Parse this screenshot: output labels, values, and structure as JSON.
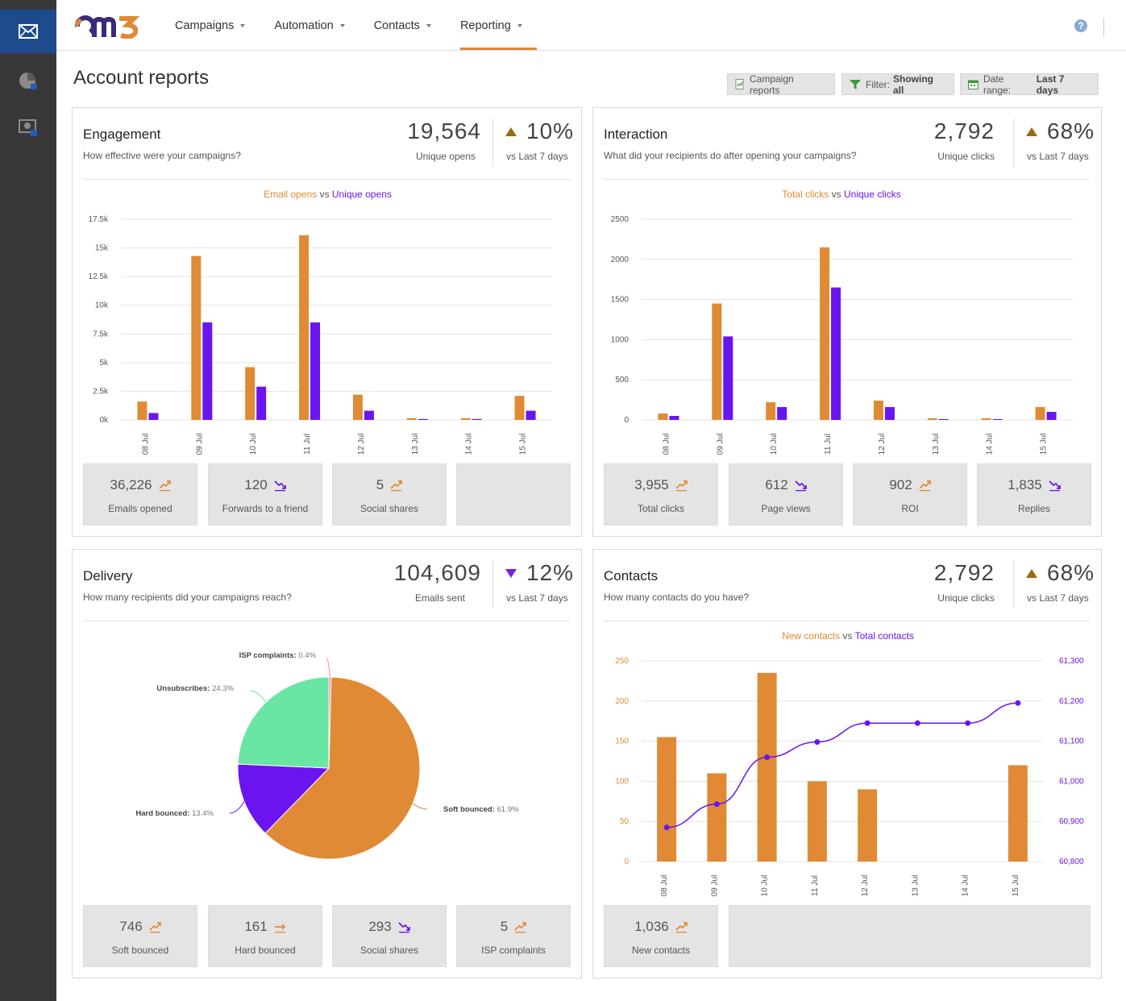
{
  "nav": {
    "logo_text": "om3",
    "items": [
      {
        "label": "Campaigns",
        "active": false
      },
      {
        "label": "Automation",
        "active": false
      },
      {
        "label": "Contacts",
        "active": false
      },
      {
        "label": "Reporting",
        "active": true
      }
    ],
    "help_symbol": "?"
  },
  "sidebar": {
    "icons": [
      "envelope-icon",
      "pie-chart-icon",
      "report-monitor-icon"
    ]
  },
  "page": {
    "title": "Account reports",
    "buttons": {
      "campaign_reports": "Campaign reports",
      "filter_label": "Filter:",
      "filter_value": "Showing all",
      "date_label": "Date range:",
      "date_value": "Last 7 days"
    }
  },
  "colors": {
    "orange": "#e08a35",
    "purple": "#6a14f0",
    "green": "#69e6a3",
    "pink": "#ff7eb3"
  },
  "engagement": {
    "title": "Engagement",
    "subtitle": "How effective were your campaigns?",
    "big_value": "19,564",
    "big_label": "Unique opens",
    "pct_value": "10%",
    "pct_direction": "up",
    "pct_label": "vs Last 7 days",
    "legend": {
      "a": "Email opens",
      "vs": "vs",
      "b": "Unique opens"
    },
    "stats": [
      {
        "value": "36,226",
        "label": "Emails opened",
        "trend": "up"
      },
      {
        "value": "120",
        "label": "Forwards to a friend",
        "trend": "down"
      },
      {
        "value": "5",
        "label": "Social shares",
        "trend": "up"
      }
    ]
  },
  "interaction": {
    "title": "Interaction",
    "subtitle": "What did your recipients do after opening your campaigns?",
    "big_value": "2,792",
    "big_label": "Unique clicks",
    "pct_value": "68%",
    "pct_direction": "up",
    "pct_label": "vs Last 7 days",
    "legend": {
      "a": "Total clicks",
      "vs": "vs",
      "b": "Unique clicks"
    },
    "stats": [
      {
        "value": "3,955",
        "label": "Total clicks",
        "trend": "up"
      },
      {
        "value": "612",
        "label": "Page views",
        "trend": "down"
      },
      {
        "value": "902",
        "label": "ROI",
        "trend": "up"
      },
      {
        "value": "1,835",
        "label": "Replies",
        "trend": "down"
      }
    ]
  },
  "delivery": {
    "title": "Delivery",
    "subtitle": "How many recipients did your campaigns reach?",
    "big_value": "104,609",
    "big_label": "Emails sent",
    "pct_value": "12%",
    "pct_direction": "down",
    "pct_label": "vs Last 7 days",
    "stats": [
      {
        "value": "746",
        "label": "Soft bounced",
        "trend": "up"
      },
      {
        "value": "161",
        "label": "Hard bounced",
        "trend": "flat"
      },
      {
        "value": "293",
        "label": "Social shares",
        "trend": "down"
      },
      {
        "value": "5",
        "label": "ISP complaints",
        "trend": "up"
      }
    ]
  },
  "contacts": {
    "title": "Contacts",
    "subtitle": "How many contacts do you have?",
    "big_value": "2,792",
    "big_label": "Unique clicks",
    "pct_value": "68%",
    "pct_direction": "up",
    "pct_label": "vs Last 7 days",
    "legend": {
      "a": "New contacts",
      "vs": "vs",
      "b": "Total contacts"
    },
    "stats": [
      {
        "value": "1,036",
        "label": "New contacts",
        "trend": "up"
      }
    ]
  },
  "chart_data": [
    {
      "type": "bar",
      "categories": [
        "08 Jul",
        "09 Jul",
        "10 Jul",
        "11 Jul",
        "12 Jul",
        "13 Jul",
        "14 Jul",
        "15 Jul"
      ],
      "series": [
        {
          "name": "Email opens",
          "values": [
            1600,
            14300,
            4600,
            16100,
            2200,
            150,
            150,
            2100
          ]
        },
        {
          "name": "Unique opens",
          "values": [
            600,
            8500,
            2900,
            8500,
            800,
            80,
            80,
            800
          ]
        }
      ],
      "ylim": [
        0,
        17500
      ],
      "yticks": [
        "0k",
        "2.5k",
        "5k",
        "7.5k",
        "10k",
        "12.5k",
        "15k",
        "17.5k"
      ],
      "grid": true
    },
    {
      "type": "bar",
      "categories": [
        "08 Jul",
        "09 Jul",
        "10 Jul",
        "11 Jul",
        "12 Jul",
        "13 Jul",
        "14 Jul",
        "15 Jul"
      ],
      "series": [
        {
          "name": "Total clicks",
          "values": [
            80,
            1450,
            220,
            2150,
            240,
            20,
            20,
            160
          ]
        },
        {
          "name": "Unique clicks",
          "values": [
            50,
            1040,
            160,
            1650,
            160,
            10,
            10,
            100
          ]
        }
      ],
      "ylim": [
        0,
        2500
      ],
      "yticks": [
        "0",
        "500",
        "1000",
        "1500",
        "2000",
        "2500"
      ],
      "grid": true
    },
    {
      "type": "pie",
      "slices": [
        {
          "name": "Soft bounced",
          "value": 61.9,
          "label": "61.9%"
        },
        {
          "name": "Hard bounced",
          "value": 13.4,
          "label": "13.4%"
        },
        {
          "name": "Unsubscribes",
          "value": 24.3,
          "label": "24.3%"
        },
        {
          "name": "ISP complaints",
          "value": 0.4,
          "label": "0.4%"
        }
      ]
    },
    {
      "type": "bar",
      "categories": [
        "08 Jul",
        "09 Jul",
        "10 Jul",
        "11 Jul",
        "12 Jul",
        "13 Jul",
        "14 Jul",
        "15 Jul"
      ],
      "series": [
        {
          "name": "New contacts",
          "type": "bar",
          "axis": "left",
          "values": [
            155,
            110,
            235,
            100,
            90,
            0,
            0,
            120
          ]
        },
        {
          "name": "Total contacts",
          "type": "line",
          "axis": "right",
          "values": [
            60885,
            60943,
            61060,
            61098,
            61145,
            61145,
            61145,
            61195
          ]
        }
      ],
      "ylim": [
        0,
        250
      ],
      "y2lim": [
        60800,
        61300
      ],
      "yticks": [
        "0",
        "50",
        "100",
        "150",
        "200",
        "250"
      ],
      "y2ticks": [
        "60,800",
        "60,900",
        "61,000",
        "61,100",
        "61,200",
        "61,300"
      ],
      "grid": true
    }
  ]
}
